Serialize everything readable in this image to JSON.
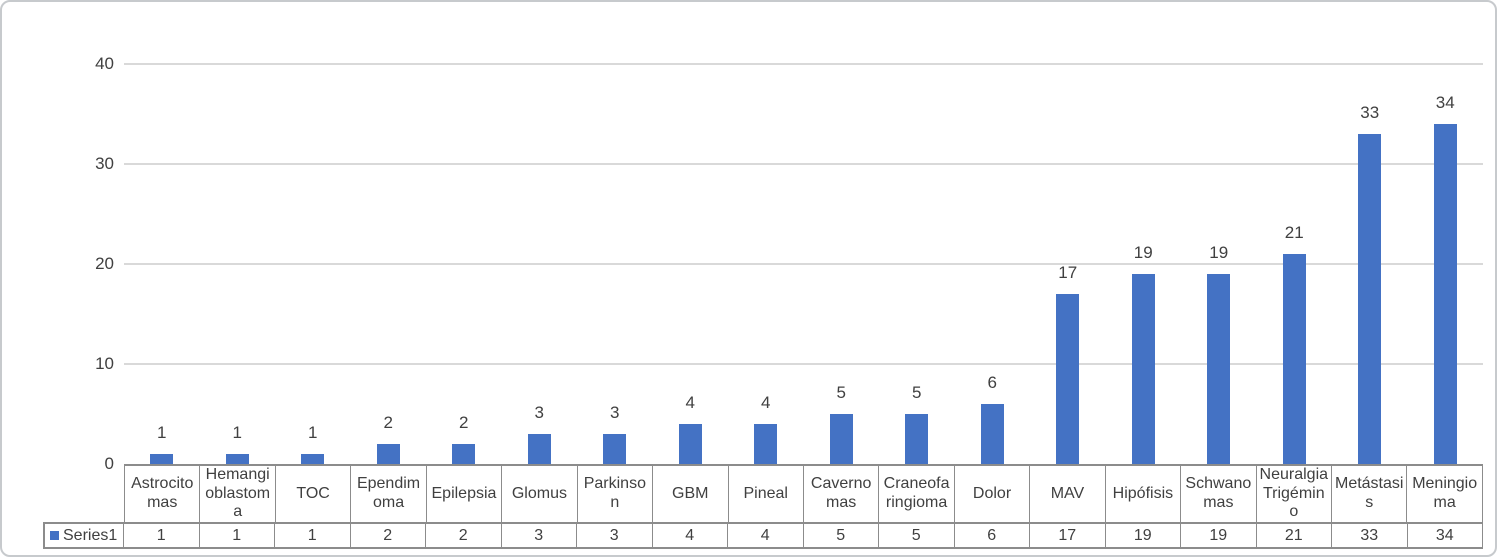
{
  "chart_data": {
    "type": "bar",
    "title": "",
    "xlabel": "",
    "ylabel": "",
    "categories": [
      "Astrocitomas",
      "Hemangioblastoma",
      "TOC",
      "Ependimoma",
      "Epilepsia",
      "Glomus",
      "Parkinson",
      "GBM",
      "Pineal",
      "Cavernomas",
      "Craneofaringioma",
      "Dolor",
      "MAV",
      "Hipófisis",
      "Schwanomas",
      "Neuralgia Trigémino",
      "Metástasis",
      "Meningioma"
    ],
    "series": [
      {
        "name": "Series1",
        "values": [
          1,
          1,
          1,
          2,
          2,
          3,
          3,
          4,
          4,
          5,
          5,
          6,
          17,
          19,
          19,
          21,
          33,
          34
        ]
      }
    ],
    "ylim": [
      0,
      40
    ],
    "yticks": [
      0,
      10,
      20,
      30,
      40
    ],
    "grid": true,
    "data_labels": true,
    "legend_position": "data-table-left-row"
  },
  "colors": {
    "bar": "#4472c4",
    "gridline": "#d9d9d9",
    "table_border": "#8c8c8c",
    "text": "#404040",
    "frame_border": "#c7cacd",
    "background": "#ffffff"
  }
}
